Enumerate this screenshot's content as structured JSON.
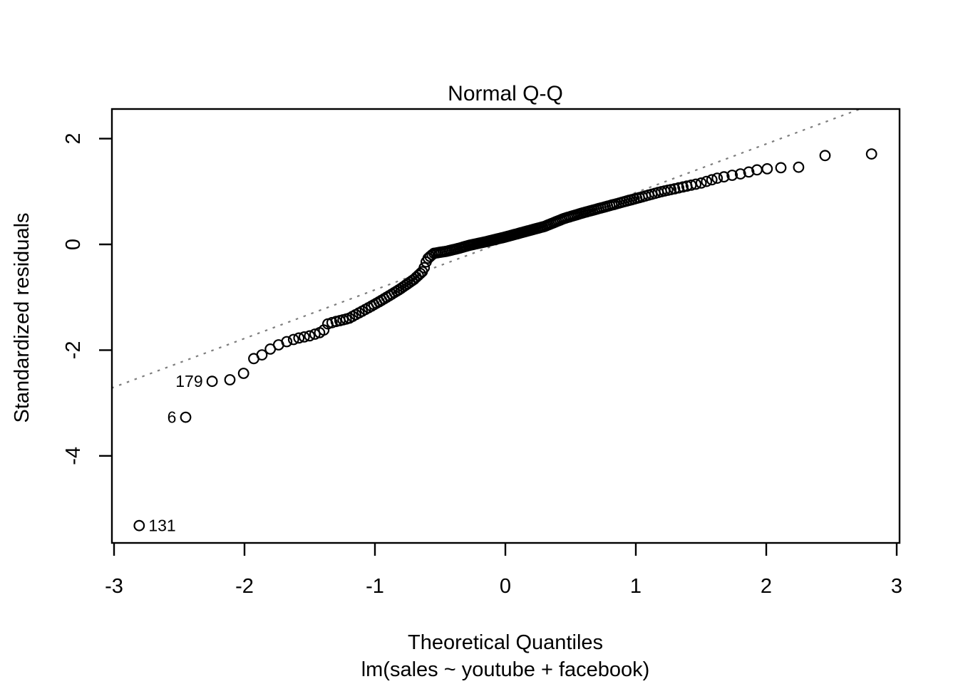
{
  "figure": {
    "background": "#ffffff",
    "text_color": "#000000"
  },
  "chart_data": {
    "type": "scatter",
    "title": "Normal Q-Q",
    "xlabel": "Theoretical Quantiles",
    "sublabel": "lm(sales ~ youtube + facebook)",
    "ylabel": "Standardized residuals",
    "x_ticks": [
      -3,
      -2,
      -1,
      0,
      1,
      2,
      3
    ],
    "y_ticks": [
      -4,
      -2,
      0,
      2
    ],
    "xlim": [
      -3.02,
      3.02
    ],
    "ylim": [
      -5.65,
      2.57
    ],
    "grid": false,
    "legend": false,
    "n_points": 200,
    "point_style": {
      "shape": "open-circle",
      "color": "#000000"
    },
    "reference_line": {
      "slope": 0.92,
      "intercept": 0.06,
      "style": "dotted",
      "color": "#7d7d7d"
    },
    "theoretical_quantiles_positive_half": [
      0.006,
      0.019,
      0.031,
      0.044,
      0.057,
      0.069,
      0.082,
      0.094,
      0.107,
      0.119,
      0.132,
      0.145,
      0.158,
      0.17,
      0.183,
      0.196,
      0.209,
      0.221,
      0.234,
      0.247,
      0.26,
      0.273,
      0.286,
      0.3,
      0.313,
      0.326,
      0.339,
      0.352,
      0.366,
      0.379,
      0.392,
      0.406,
      0.42,
      0.434,
      0.448,
      0.462,
      0.476,
      0.49,
      0.504,
      0.518,
      0.532,
      0.547,
      0.562,
      0.577,
      0.592,
      0.607,
      0.622,
      0.637,
      0.652,
      0.667,
      0.683,
      0.7,
      0.716,
      0.733,
      0.75,
      0.766,
      0.783,
      0.8,
      0.817,
      0.833,
      0.851,
      0.871,
      0.89,
      0.91,
      0.929,
      0.949,
      0.968,
      0.988,
      1.007,
      1.027,
      1.049,
      1.073,
      1.098,
      1.122,
      1.147,
      1.171,
      1.196,
      1.22,
      1.245,
      1.269,
      1.297,
      1.329,
      1.361,
      1.392,
      1.424,
      1.46,
      1.501,
      1.542,
      1.583,
      1.624,
      1.676,
      1.739,
      1.802,
      1.866,
      1.929,
      2.007,
      2.112,
      2.248,
      2.451,
      2.807
    ],
    "sample_curve_anchors": [
      [
        -2.807,
        -5.32
      ],
      [
        -2.451,
        -3.27
      ],
      [
        -2.248,
        -2.59
      ],
      [
        -2.112,
        -2.56
      ],
      [
        -2.007,
        -2.44
      ],
      [
        -1.929,
        -2.16
      ],
      [
        -1.866,
        -2.09
      ],
      [
        -1.802,
        -1.98
      ],
      [
        -1.739,
        -1.9
      ],
      [
        -1.676,
        -1.84
      ],
      [
        -1.6,
        -1.78
      ],
      [
        -1.5,
        -1.73
      ],
      [
        -1.4,
        -1.65
      ],
      [
        -1.36,
        -1.5
      ],
      [
        -1.3,
        -1.46
      ],
      [
        -1.2,
        -1.4
      ],
      [
        -1.05,
        -1.2
      ],
      [
        -0.95,
        -1.06
      ],
      [
        -0.81,
        -0.85
      ],
      [
        -0.7,
        -0.66
      ],
      [
        -0.63,
        -0.5
      ],
      [
        -0.6,
        -0.28
      ],
      [
        -0.55,
        -0.17
      ],
      [
        -0.45,
        -0.13
      ],
      [
        -0.35,
        -0.07
      ],
      [
        -0.28,
        -0.02
      ],
      [
        -0.15,
        0.05
      ],
      [
        0.0,
        0.14
      ],
      [
        0.15,
        0.24
      ],
      [
        0.3,
        0.34
      ],
      [
        0.45,
        0.49
      ],
      [
        0.6,
        0.6
      ],
      [
        0.75,
        0.7
      ],
      [
        0.9,
        0.8
      ],
      [
        1.05,
        0.9
      ],
      [
        1.2,
        1.0
      ],
      [
        1.35,
        1.08
      ],
      [
        1.5,
        1.16
      ],
      [
        1.62,
        1.25
      ],
      [
        1.72,
        1.3
      ],
      [
        1.82,
        1.34
      ],
      [
        1.93,
        1.41
      ],
      [
        2.01,
        1.43
      ],
      [
        2.11,
        1.45
      ],
      [
        2.25,
        1.46
      ],
      [
        2.45,
        1.68
      ],
      [
        2.81,
        1.71
      ]
    ],
    "labeled_outliers": [
      {
        "label": "131",
        "x": -2.807,
        "y": -5.32,
        "side": "right"
      },
      {
        "label": "6",
        "x": -2.451,
        "y": -3.27,
        "side": "left"
      },
      {
        "label": "179",
        "x": -2.248,
        "y": -2.59,
        "side": "left"
      }
    ]
  }
}
